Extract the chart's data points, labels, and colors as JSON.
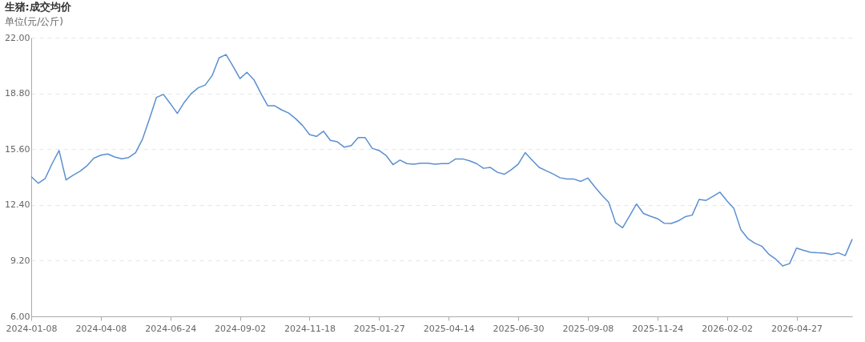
{
  "chart_data": {
    "type": "line",
    "title": "生猪:成交均价",
    "ylabel": "单位(元/公斤)",
    "categories": [
      "2024-01-08",
      null,
      null,
      null,
      null,
      null,
      null,
      null,
      null,
      null,
      "2024-04-08",
      null,
      null,
      null,
      null,
      null,
      null,
      null,
      null,
      null,
      "2024-06-24",
      null,
      null,
      null,
      null,
      null,
      null,
      null,
      null,
      null,
      "2024-09-02",
      null,
      null,
      null,
      null,
      null,
      null,
      null,
      null,
      null,
      "2024-11-18",
      null,
      null,
      null,
      null,
      null,
      null,
      null,
      null,
      null,
      "2025-01-27",
      null,
      null,
      null,
      null,
      null,
      null,
      null,
      null,
      null,
      "2025-04-14",
      null,
      null,
      null,
      null,
      null,
      null,
      null,
      null,
      null,
      "2025-06-30",
      null,
      null,
      null,
      null,
      null,
      null,
      null,
      null,
      null,
      "2025-09-08",
      null,
      null,
      null,
      null,
      null,
      null,
      null,
      null,
      null,
      "2025-11-24",
      null,
      null,
      null,
      null,
      null,
      null,
      null,
      null,
      null,
      "2026-02-02",
      null,
      null,
      null,
      null,
      null,
      null,
      null,
      null,
      null,
      "2026-04-27",
      null,
      null,
      null,
      null,
      null,
      null,
      null,
      null
    ],
    "series": [
      {
        "color": "#5b8fd0",
        "values": [
          14.02,
          13.64,
          13.91,
          14.77,
          15.52,
          13.83,
          14.1,
          14.33,
          14.64,
          15.08,
          15.25,
          15.32,
          15.15,
          15.05,
          15.12,
          15.4,
          16.18,
          17.35,
          18.57,
          18.74,
          18.21,
          17.65,
          18.29,
          18.79,
          19.12,
          19.28,
          19.82,
          20.84,
          21.03,
          20.36,
          19.65,
          20.01,
          19.59,
          18.81,
          18.09,
          18.09,
          17.85,
          17.67,
          17.35,
          16.96,
          16.44,
          16.33,
          16.63,
          16.1,
          16.02,
          15.71,
          15.8,
          16.26,
          16.26,
          15.65,
          15.52,
          15.24,
          14.71,
          14.97,
          14.77,
          14.74,
          14.79,
          14.79,
          14.74,
          14.77,
          14.77,
          15.04,
          15.04,
          14.93,
          14.77,
          14.5,
          14.55,
          14.27,
          14.16,
          14.42,
          14.74,
          15.4,
          14.97,
          14.55,
          14.36,
          14.18,
          13.96,
          13.88,
          13.88,
          13.75,
          13.94,
          13.44,
          12.97,
          12.55,
          11.37,
          11.09,
          11.76,
          12.45,
          11.91,
          11.75,
          11.61,
          11.34,
          11.33,
          11.48,
          11.72,
          11.81,
          12.71,
          12.66,
          12.89,
          13.13,
          12.63,
          12.19,
          10.98,
          10.47,
          10.2,
          10.03,
          9.57,
          9.29,
          8.9,
          9.03,
          9.92,
          9.79,
          9.68,
          9.65,
          9.63,
          9.55,
          9.65,
          9.49,
          10.43
        ]
      }
    ],
    "ylim": [
      6,
      22
    ],
    "yticks": [
      {
        "value": 6,
        "label": "6.00"
      },
      {
        "value": 9.2,
        "label": "9.20"
      },
      {
        "value": 12.4,
        "label": "12.40"
      },
      {
        "value": 15.6,
        "label": "15.60"
      },
      {
        "value": 18.8,
        "label": "18.80"
      },
      {
        "value": 22,
        "label": "22.00"
      }
    ],
    "grid": "y",
    "marker": "none",
    "line_style": "solid"
  }
}
